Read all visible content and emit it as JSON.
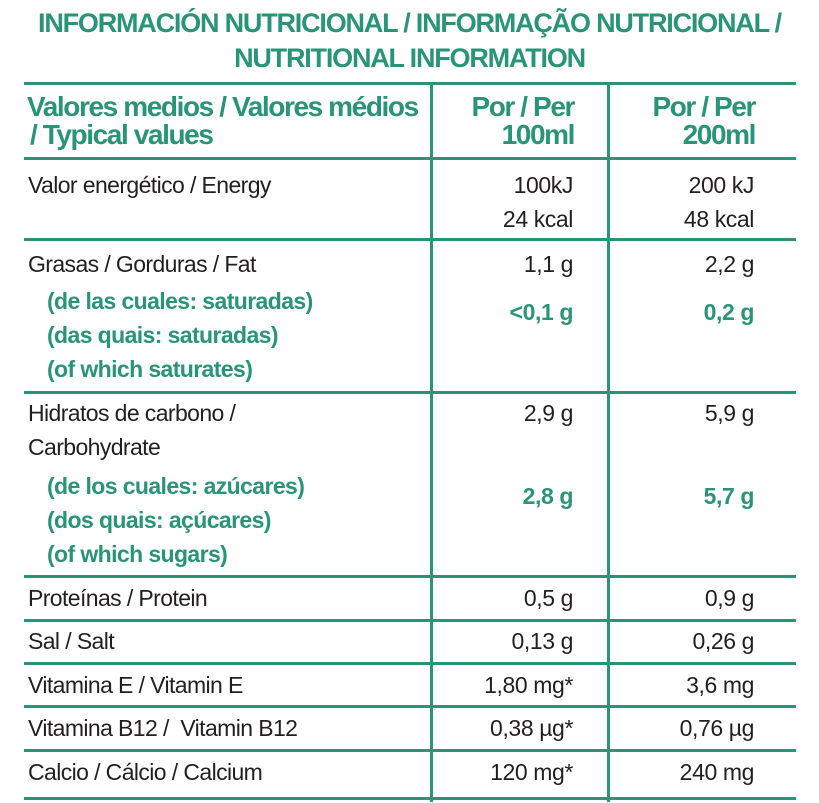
{
  "colors": {
    "accent": "#2a9479",
    "text": "#231f20"
  },
  "title": {
    "line1": "INFORMACIÓN NUTRICIONAL / INFORMAÇÃO NUTRICIONAL /",
    "line2": "NUTRITIONAL INFORMATION"
  },
  "header": {
    "label_line1": "Valores medios / Valores médios",
    "label_line2": "/ Typical values",
    "col1_line1": "Por / Per",
    "col1_line2": "100ml",
    "col2_line1": "Por / Per",
    "col2_line2": "200ml"
  },
  "rows": {
    "energy": {
      "label": "Valor energético / Energy",
      "v1_kj": "100kJ",
      "v1_kcal": "24 kcal",
      "v2_kj": "200 kJ",
      "v2_kcal": "48 kcal"
    },
    "fat": {
      "label": "Grasas / Gorduras / Fat",
      "v1": "1,1 g",
      "v2": "2,2 g",
      "sub1": "(de las cuales: saturadas)",
      "sub2": "(das quais: saturadas)",
      "sub3": "(of which saturates)",
      "sub_v1": "<0,1 g",
      "sub_v2": "0,2 g"
    },
    "carb": {
      "label1": "Hidratos de carbono /",
      "label2": "Carbohydrate",
      "v1": "2,9 g",
      "v2": "5,9 g",
      "sub1": "(de los cuales: azúcares)",
      "sub2": "(dos quais: açúcares)",
      "sub3": "(of which sugars)",
      "sub_v1": "2,8 g",
      "sub_v2": "5,7 g"
    },
    "protein": {
      "label": "Proteínas / Protein",
      "v1": "0,5 g",
      "v2": "0,9 g"
    },
    "salt": {
      "label": "Sal / Salt",
      "v1": "0,13 g",
      "v2": "0,26 g"
    },
    "vitE": {
      "label": "Vitamina E / Vitamin E",
      "v1": "1,80 mg*",
      "v2": "3,6 mg"
    },
    "vitB12": {
      "label": "Vitamina B12 /  Vitamin B12",
      "v1": "0,38 µg*",
      "v2": "0,76 µg"
    },
    "calcium": {
      "label": "Calcio / Cálcio / Calcium",
      "v1": "120 mg*",
      "v2": "240 mg"
    }
  }
}
